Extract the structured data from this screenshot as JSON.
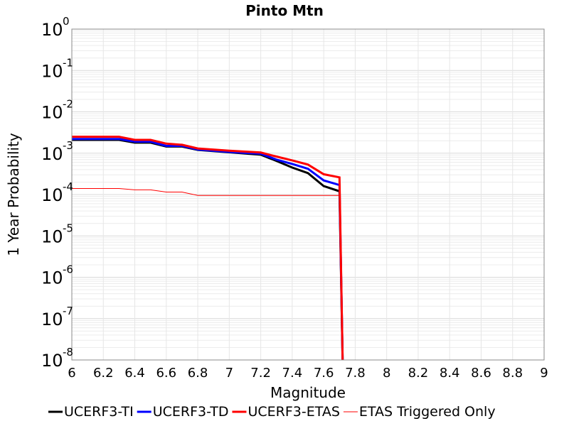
{
  "chart_data": {
    "type": "line",
    "title": "Pinto Mtn",
    "xlabel": "Magnitude",
    "ylabel": "1 Year Probability",
    "xlim": [
      6,
      9
    ],
    "ylim": [
      1e-08,
      1
    ],
    "yscale": "log",
    "grid": true,
    "legend_position": "bottom",
    "x_ticks": [
      "6",
      "6.2",
      "6.4",
      "6.6",
      "6.8",
      "7",
      "7.2",
      "7.4",
      "7.6",
      "7.8",
      "8",
      "8.2",
      "8.4",
      "8.6",
      "8.8",
      "9"
    ],
    "y_ticks": [
      {
        "base": "10",
        "exp": "0"
      },
      {
        "base": "10",
        "exp": "-1"
      },
      {
        "base": "10",
        "exp": "-2"
      },
      {
        "base": "10",
        "exp": "-3"
      },
      {
        "base": "10",
        "exp": "-4"
      },
      {
        "base": "10",
        "exp": "-5"
      },
      {
        "base": "10",
        "exp": "-6"
      },
      {
        "base": "10",
        "exp": "-7"
      },
      {
        "base": "10",
        "exp": "-8"
      }
    ],
    "series": [
      {
        "name": "UCERF3-TI",
        "color": "#000000",
        "width": 3,
        "x": [
          6.0,
          6.3,
          6.4,
          6.5,
          6.6,
          6.7,
          6.8,
          7.0,
          7.2,
          7.3,
          7.4,
          7.5,
          7.6,
          7.7,
          7.72
        ],
        "y": [
          0.0021,
          0.0021,
          0.0018,
          0.0018,
          0.00145,
          0.00145,
          0.0012,
          0.00105,
          0.00092,
          0.00065,
          0.00045,
          0.00033,
          0.00016,
          0.00012,
          1e-08
        ]
      },
      {
        "name": "UCERF3-TD",
        "color": "#0000ff",
        "width": 3,
        "x": [
          6.0,
          6.3,
          6.4,
          6.5,
          6.6,
          6.7,
          6.8,
          7.0,
          7.2,
          7.3,
          7.4,
          7.5,
          7.6,
          7.7,
          7.72
        ],
        "y": [
          0.0022,
          0.0022,
          0.0019,
          0.0019,
          0.0015,
          0.0015,
          0.00122,
          0.00107,
          0.00097,
          0.0007,
          0.00055,
          0.00042,
          0.00022,
          0.00017,
          1e-08
        ]
      },
      {
        "name": "UCERF3-ETAS",
        "color": "#ff0000",
        "width": 3,
        "x": [
          6.0,
          6.3,
          6.4,
          6.5,
          6.6,
          6.7,
          6.8,
          7.0,
          7.2,
          7.3,
          7.4,
          7.5,
          7.6,
          7.7,
          7.72
        ],
        "y": [
          0.0025,
          0.0025,
          0.0021,
          0.0021,
          0.0017,
          0.0016,
          0.0013,
          0.00115,
          0.00104,
          0.00083,
          0.00067,
          0.00053,
          0.00031,
          0.00026,
          1e-08
        ]
      },
      {
        "name": "ETAS Triggered Only",
        "color": "#ff0000",
        "width": 1,
        "x": [
          6.0,
          6.3,
          6.4,
          6.5,
          6.6,
          6.7,
          6.8,
          7.0,
          7.2,
          7.4,
          7.6,
          7.7
        ],
        "y": [
          0.00014,
          0.00014,
          0.00013,
          0.00013,
          0.000115,
          0.000115,
          9.5e-05,
          9.5e-05,
          9.5e-05,
          9.5e-05,
          9.5e-05,
          9.5e-05
        ]
      }
    ]
  }
}
